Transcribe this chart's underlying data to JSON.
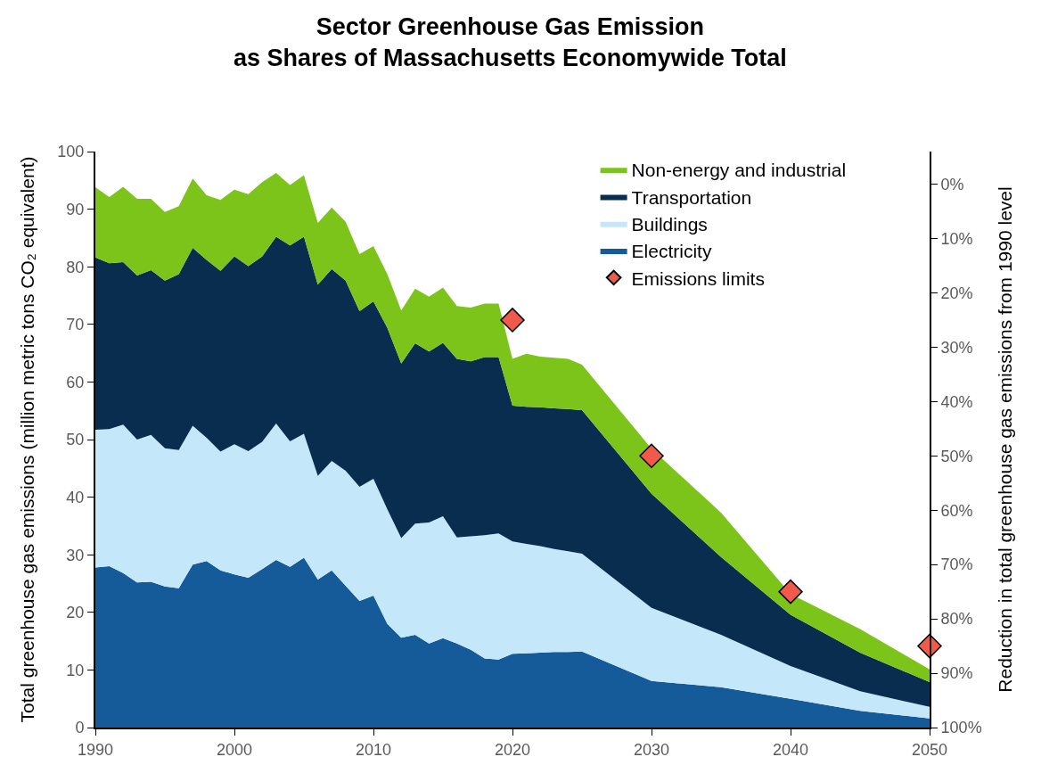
{
  "chart_data": {
    "type": "area",
    "stacked": true,
    "title": "Sector Greenhouse Gas Emission\nas Shares of Massachusetts Economywide Total",
    "ylabel": "Total greenhouse gas emissions (million metric tons CO₂ equivalent)",
    "y2label": "Reduction in total greenhouse gas emissions from 1990 level",
    "x": [
      1990,
      1991,
      1992,
      1993,
      1994,
      1995,
      1996,
      1997,
      1998,
      1999,
      2000,
      2001,
      2002,
      2003,
      2004,
      2005,
      2006,
      2007,
      2008,
      2009,
      2010,
      2011,
      2012,
      2013,
      2014,
      2015,
      2016,
      2017,
      2018,
      2019,
      2020,
      2021,
      2022,
      2023,
      2024,
      2025,
      2030,
      2035,
      2040,
      2045,
      2050
    ],
    "series": [
      {
        "name": "Electricity",
        "color": "#155a99",
        "values": [
          27.8,
          28.0,
          26.8,
          25.2,
          25.3,
          24.5,
          24.2,
          28.3,
          28.9,
          27.3,
          26.6,
          26.0,
          27.5,
          29.1,
          27.9,
          29.5,
          25.7,
          27.3,
          24.6,
          22.0,
          22.9,
          18.0,
          15.6,
          16.1,
          14.6,
          15.5,
          14.6,
          13.5,
          12.0,
          11.8,
          12.8,
          12.9,
          13.0,
          13.1,
          13.1,
          13.2,
          8.1,
          7.0,
          5.0,
          2.9,
          1.6
        ]
      },
      {
        "name": "Buildings",
        "color": "#c5e7fa",
        "values": [
          23.9,
          23.8,
          25.8,
          24.8,
          25.5,
          24.0,
          24.0,
          24.1,
          21.4,
          20.6,
          22.6,
          22.0,
          22.1,
          23.7,
          21.8,
          21.5,
          18.0,
          19.0,
          20.0,
          19.8,
          20.3,
          19.9,
          17.3,
          19.3,
          21.0,
          21.2,
          18.4,
          19.7,
          21.4,
          21.9,
          19.5,
          19.0,
          18.5,
          17.9,
          17.5,
          17.0,
          12.7,
          9.1,
          5.7,
          3.4,
          2.0
        ]
      },
      {
        "name": "Transportation",
        "color": "#082d4f",
        "values": [
          29.9,
          28.8,
          28.2,
          28.5,
          28.6,
          29.1,
          30.5,
          30.9,
          30.9,
          31.4,
          32.6,
          32.1,
          32.2,
          32.4,
          34.0,
          34.2,
          33.2,
          33.3,
          33.0,
          30.5,
          30.8,
          31.5,
          30.3,
          31.3,
          29.7,
          30.1,
          31.0,
          30.4,
          30.9,
          30.6,
          23.6,
          23.8,
          24.1,
          24.4,
          24.7,
          24.9,
          19.8,
          13.5,
          8.9,
          6.7,
          4.3
        ]
      },
      {
        "name": "Non-energy and industrial",
        "color": "#7dc41a",
        "values": [
          12.2,
          11.5,
          13.1,
          13.3,
          12.4,
          11.9,
          11.8,
          12.0,
          11.2,
          12.3,
          11.6,
          12.5,
          12.9,
          11.1,
          10.5,
          10.7,
          10.7,
          10.7,
          10.2,
          9.9,
          9.6,
          9.3,
          9.2,
          9.5,
          9.5,
          9.6,
          9.2,
          9.3,
          9.3,
          9.3,
          8.1,
          9.2,
          8.8,
          8.8,
          8.7,
          7.9,
          7.8,
          7.7,
          3.6,
          4.1,
          2.2
        ]
      },
      {
        "name": "Emissions limits",
        "type": "scatter",
        "marker": "diamond",
        "axis": "y2",
        "color": "#f05a4b",
        "x": [
          2020,
          2030,
          2040,
          2050
        ],
        "values": [
          25,
          50,
          75,
          85
        ]
      }
    ],
    "xlim": [
      1990,
      2050
    ],
    "xticks": [
      1990,
      2000,
      2010,
      2020,
      2030,
      2040,
      2050
    ],
    "ylim": [
      0,
      100
    ],
    "yticks": [
      0,
      10,
      20,
      30,
      40,
      50,
      60,
      70,
      80,
      90,
      100
    ],
    "y2lim": [
      100,
      -6
    ],
    "y2ticks": [
      {
        "value": 0,
        "label": "0%"
      },
      {
        "value": 10,
        "label": "10%"
      },
      {
        "value": 20,
        "label": "20%"
      },
      {
        "value": 30,
        "label": "30%"
      },
      {
        "value": 40,
        "label": "40%"
      },
      {
        "value": 50,
        "label": "50%"
      },
      {
        "value": 60,
        "label": "60%"
      },
      {
        "value": 70,
        "label": "70%"
      },
      {
        "value": 80,
        "label": "80%"
      },
      {
        "value": 90,
        "label": "90%"
      },
      {
        "value": 100,
        "label": "100%"
      }
    ],
    "grid": false,
    "legend": "top right"
  }
}
